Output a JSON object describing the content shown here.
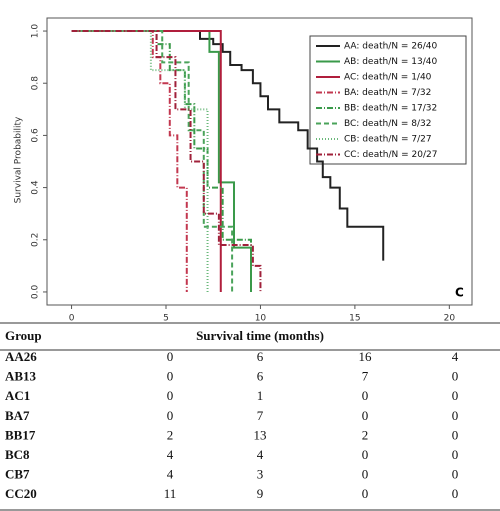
{
  "chart_data": {
    "type": "step",
    "y_label": "Survival Probability",
    "annotation": "C",
    "xlim": [
      -1.3,
      21.2
    ],
    "xticks": [
      0,
      5,
      10,
      15,
      20
    ],
    "ylim": [
      -0.05,
      1.05
    ],
    "yticks": [
      {
        "value": 0,
        "label": "0.0"
      },
      {
        "value": 0.2,
        "label": "0.2"
      },
      {
        "value": 0.4,
        "label": "0.4"
      },
      {
        "value": 0.6,
        "label": "0.6"
      },
      {
        "value": 0.8,
        "label": "0.8"
      },
      {
        "value": 1,
        "label": "1.0"
      }
    ],
    "legend": "top-right",
    "series": [
      {
        "name": "AA: death/N = 26/40",
        "color": "#222222",
        "dash": "none",
        "x": [
          0,
          6.8,
          6.8,
          7.5,
          7.5,
          8,
          8,
          8.4,
          8.4,
          9,
          9,
          9.6,
          9.6,
          10,
          10,
          10.4,
          10.4,
          11,
          11,
          12,
          12,
          12.5,
          12.5,
          13,
          13,
          13.3,
          13.3,
          13.7,
          13.7,
          14.2,
          14.2,
          14.6,
          14.6,
          16.5,
          16.5
        ],
        "values": [
          1,
          1,
          0.97,
          0.97,
          0.95,
          0.95,
          0.92,
          0.92,
          0.87,
          0.87,
          0.85,
          0.85,
          0.8,
          0.8,
          0.75,
          0.75,
          0.7,
          0.7,
          0.65,
          0.65,
          0.62,
          0.62,
          0.55,
          0.55,
          0.5,
          0.5,
          0.44,
          0.44,
          0.4,
          0.4,
          0.32,
          0.32,
          0.25,
          0.25,
          0.12
        ]
      },
      {
        "name": "AB: death/N = 13/40",
        "color": "#3a9a4a",
        "dash": "none",
        "x": [
          0,
          7.3,
          7.3,
          7.8,
          7.8,
          8.6,
          8.6,
          9.5,
          9.5
        ],
        "values": [
          1,
          1,
          0.92,
          0.92,
          0.42,
          0.42,
          0.17,
          0.17,
          0
        ]
      },
      {
        "name": "AC: death/N = 1/40",
        "color": "#b01e3c",
        "dash": "none",
        "x": [
          0,
          7.9,
          7.9
        ],
        "values": [
          1,
          1,
          0
        ]
      },
      {
        "name": "BA: death/N = 7/32",
        "color": "#c2374f",
        "dash": "6 2 1 2",
        "x": [
          0,
          4.3,
          4.3,
          4.7,
          4.7,
          5.2,
          5.2,
          5.6,
          5.6,
          6.1,
          6.1
        ],
        "values": [
          1,
          1,
          0.9,
          0.9,
          0.8,
          0.8,
          0.6,
          0.6,
          0.4,
          0.4,
          0
        ]
      },
      {
        "name": "BB: death/N = 17/32",
        "color": "#3a9a4a",
        "dash": "6 2 1 2",
        "x": [
          0,
          4.5,
          4.5,
          5.2,
          5.2,
          6,
          6,
          6.5,
          6.5,
          7.2,
          7.2,
          8,
          8,
          9.5,
          9.5
        ],
        "values": [
          1,
          1,
          0.95,
          0.95,
          0.85,
          0.85,
          0.72,
          0.72,
          0.55,
          0.55,
          0.4,
          0.4,
          0.2,
          0.2,
          0.1
        ]
      },
      {
        "name": "BC: death/N = 8/32",
        "color": "#4aa35a",
        "dash": "5 3",
        "x": [
          0,
          4.8,
          4.8,
          6.2,
          6.2,
          7,
          7,
          8.5,
          8.5
        ],
        "values": [
          1,
          1,
          0.88,
          0.88,
          0.62,
          0.62,
          0.25,
          0.25,
          0
        ]
      },
      {
        "name": "CB: death/N = 7/27",
        "color": "#6ab87a",
        "dash": "1 2",
        "x": [
          0,
          4.2,
          4.2,
          6,
          6,
          7.2,
          7.2
        ],
        "values": [
          1,
          1,
          0.85,
          0.85,
          0.7,
          0.7,
          0
        ]
      },
      {
        "name": "CC: death/N = 20/27",
        "color": "#a0203a",
        "dash": "6 2 1 2",
        "x": [
          0,
          4.5,
          4.5,
          5.5,
          5.5,
          6.3,
          6.3,
          7,
          7,
          7.8,
          7.8,
          9.6,
          9.6,
          10,
          10
        ],
        "values": [
          1,
          1,
          0.9,
          0.9,
          0.7,
          0.7,
          0.5,
          0.5,
          0.3,
          0.3,
          0.18,
          0.18,
          0.1,
          0.1,
          0
        ]
      }
    ]
  },
  "table": {
    "header": [
      "Group",
      "Survival time (months)"
    ],
    "rows": [
      [
        "AA26",
        0,
        6,
        16,
        4
      ],
      [
        "AB13",
        0,
        6,
        7,
        0
      ],
      [
        "AC1",
        0,
        1,
        0,
        0
      ],
      [
        "BA7",
        0,
        7,
        0,
        0
      ],
      [
        "BB17",
        2,
        13,
        2,
        0
      ],
      [
        "BC8",
        4,
        4,
        0,
        0
      ],
      [
        "CB7",
        4,
        3,
        0,
        0
      ],
      [
        "CC20",
        11,
        9,
        0,
        0
      ]
    ]
  }
}
